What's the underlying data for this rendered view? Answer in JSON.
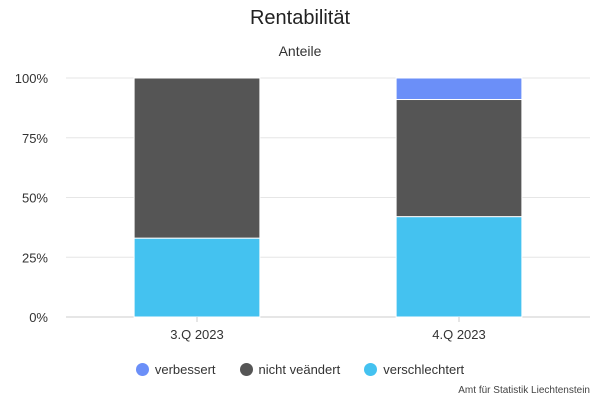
{
  "chart_data": {
    "type": "bar",
    "stacked": true,
    "title": "Rentabilität",
    "subtitle": "Anteile",
    "categories": [
      "3.Q 2023",
      "4.Q 2023"
    ],
    "y_ticks": [
      "0%",
      "25%",
      "50%",
      "75%",
      "100%"
    ],
    "ylim": [
      0,
      100
    ],
    "series": [
      {
        "name": "verschlechtert",
        "color": "#44c2f0",
        "values": [
          33,
          42
        ]
      },
      {
        "name": "nicht veändert",
        "color": "#555555",
        "values": [
          67,
          49
        ]
      },
      {
        "name": "verbessert",
        "color": "#6b8ff8",
        "values": [
          0,
          9
        ]
      }
    ],
    "legend_order": [
      2,
      1,
      0
    ],
    "legend_position": "bottom",
    "grid": true,
    "credit": "Amt für Statistik Liechtenstein"
  }
}
